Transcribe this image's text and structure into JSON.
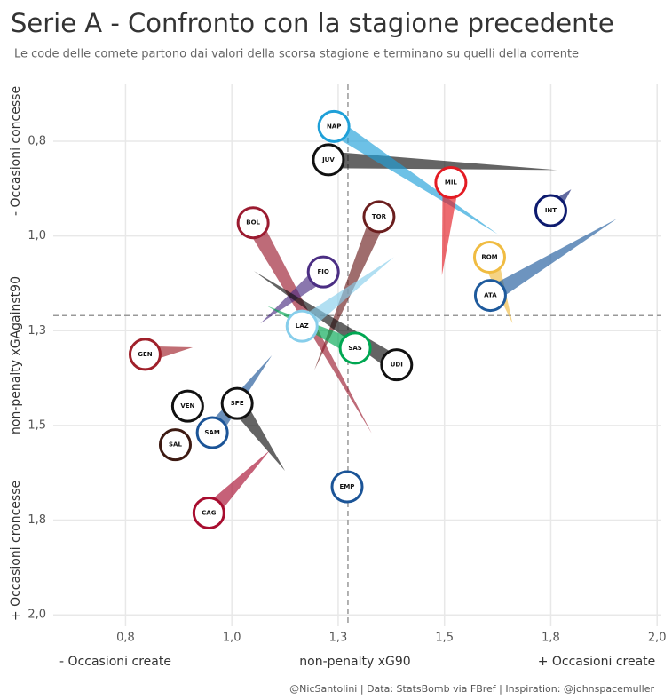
{
  "chart_data": {
    "type": "comet",
    "title": "Serie A - Confronto con la stagione precedente",
    "subtitle": "Le code delle comete partono dai valori della scorsa stagione e terminano su quelli della corrente",
    "x_label": "non-penalty xG90",
    "x_label_low": "- Occasioni create",
    "x_label_high": "+ Occasioni create",
    "y_label": "non-penalty xGAgainst90",
    "y_label_low": "- Occasioni concesse",
    "y_label_high": "+ Occasioni croncesse",
    "footer": "@NicSantolini | Data: StatsBomb via FBref | Inspiration: @johnspacemuller",
    "xlim": [
      0.58,
      2.01
    ],
    "ylim": [
      0.6,
      2.03
    ],
    "y_reversed": true,
    "grid": true,
    "xticks": [
      {
        "value": 0.75,
        "label": "0,8"
      },
      {
        "value": 1.0,
        "label": "1,0"
      },
      {
        "value": 1.25,
        "label": "1,3"
      },
      {
        "value": 1.5,
        "label": "1,5"
      },
      {
        "value": 1.75,
        "label": "1,8"
      },
      {
        "value": 2.0,
        "label": "2,0"
      }
    ],
    "yticks": [
      {
        "value": 0.75,
        "label": "0,8"
      },
      {
        "value": 1.0,
        "label": "1,0"
      },
      {
        "value": 1.25,
        "label": "1,3"
      },
      {
        "value": 1.5,
        "label": "1,5"
      },
      {
        "value": 1.75,
        "label": "1,8"
      },
      {
        "value": 2.0,
        "label": "2,0"
      }
    ],
    "ref_x": 1.273,
    "ref_y": 1.21,
    "teams": [
      {
        "name": "JUV",
        "color": "#111111",
        "x": 1.227,
        "y": 0.799,
        "x_prev": 1.765,
        "y_prev": 0.826
      },
      {
        "name": "NAP",
        "color": "#1fa0d8",
        "x": 1.24,
        "y": 0.711,
        "x_prev": 1.625,
        "y_prev": 0.995
      },
      {
        "name": "MIL",
        "color": "#e31b23",
        "x": 1.515,
        "y": 0.859,
        "x_prev": 1.494,
        "y_prev": 1.104
      },
      {
        "name": "INT",
        "color": "#0d1a6e",
        "x": 1.75,
        "y": 0.933,
        "x_prev": 1.798,
        "y_prev": 0.877
      },
      {
        "name": "TOR",
        "color": "#6b1e1e",
        "x": 1.346,
        "y": 0.949,
        "x_prev": 1.194,
        "y_prev": 1.354
      },
      {
        "name": "BOL",
        "color": "#9b1b30",
        "x": 1.05,
        "y": 0.965,
        "x_prev": 1.329,
        "y_prev": 1.521
      },
      {
        "name": "FIO",
        "color": "#4b2e83",
        "x": 1.215,
        "y": 1.095,
        "x_prev": 1.067,
        "y_prev": 1.231
      },
      {
        "name": "ROM",
        "color": "#f0bc42",
        "x": 1.606,
        "y": 1.056,
        "x_prev": 1.66,
        "y_prev": 1.231
      },
      {
        "name": "ATA",
        "color": "#1e5a9c",
        "x": 1.608,
        "y": 1.157,
        "x_prev": 1.906,
        "y_prev": 0.954
      },
      {
        "name": "UDI",
        "color": "#111111",
        "x": 1.3875,
        "y": 1.34,
        "x_prev": 1.052,
        "y_prev": 1.093
      },
      {
        "name": "LAZ",
        "color": "#87ceeb",
        "x": 1.165,
        "y": 1.238,
        "x_prev": 1.381,
        "y_prev": 1.056
      },
      {
        "name": "SAS",
        "color": "#00a752",
        "x": 1.29,
        "y": 1.296,
        "x_prev": 1.083,
        "y_prev": 1.185
      },
      {
        "name": "GEN",
        "color": "#a0202a",
        "x": 0.796,
        "y": 1.3125,
        "x_prev": 0.908,
        "y_prev": 1.294
      },
      {
        "name": "SAM",
        "color": "#1b5497",
        "x": 0.954,
        "y": 1.519,
        "x_prev": 1.094,
        "y_prev": 1.315
      },
      {
        "name": "SPE",
        "color": "#111111",
        "x": 1.0125,
        "y": 1.442,
        "x_prev": 1.125,
        "y_prev": 1.62
      },
      {
        "name": "VEN",
        "color": "#111111",
        "x": 0.896,
        "y": 1.449,
        "x_prev": null,
        "y_prev": null
      },
      {
        "name": "SAL",
        "color": "#3d1a12",
        "x": 0.867,
        "y": 1.551,
        "x_prev": null,
        "y_prev": null
      },
      {
        "name": "CAG",
        "color": "#a80d2f",
        "x": 0.946,
        "y": 1.731,
        "x_prev": 1.09,
        "y_prev": 1.565
      },
      {
        "name": "EMP",
        "color": "#1b5497",
        "x": 1.271,
        "y": 1.662,
        "x_prev": null,
        "y_prev": null
      }
    ]
  }
}
